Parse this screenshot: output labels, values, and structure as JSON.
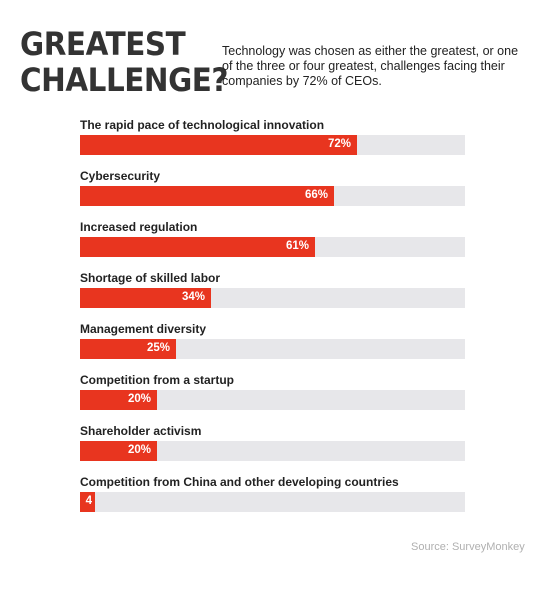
{
  "headline": {
    "line1": "GREATEST",
    "line2": "CHALLENGE?"
  },
  "subtitle": "Technology was chosen as either the greatest, or one of the three or four greatest, challenges facing their companies by 72% of CEOs.",
  "colors": {
    "bar": "#e8351f",
    "track": "#e7e7ea",
    "bar_text": "#ffffff"
  },
  "chart_data": {
    "type": "bar",
    "orientation": "horizontal",
    "categories": [
      "The rapid pace of technological innovation",
      "Cybersecurity",
      "Increased regulation",
      "Shortage of skilled labor",
      "Management diversity",
      "Competition from a startup",
      "Shareholder activism",
      "Competition from China and other developing countries"
    ],
    "values": [
      72,
      66,
      61,
      34,
      25,
      20,
      20,
      4
    ],
    "value_labels": [
      "72%",
      "66%",
      "61%",
      "34%",
      "25%",
      "20%",
      "20%",
      "4"
    ],
    "xlim": [
      0,
      100
    ],
    "grid": false,
    "legend": "none"
  },
  "source": "Source: SurveyMonkey"
}
